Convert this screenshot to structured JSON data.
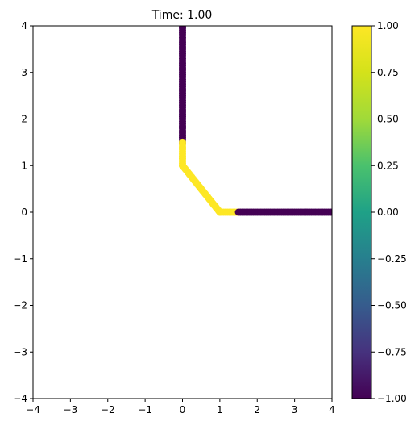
{
  "chart_data": {
    "type": "scatter",
    "title": "Time: 1.00",
    "xlabel": "",
    "ylabel": "",
    "xlim": [
      -4,
      4
    ],
    "ylim": [
      -4,
      4
    ],
    "xticks": [
      -4,
      -3,
      -2,
      -1,
      0,
      1,
      2,
      3,
      4
    ],
    "yticks": [
      -4,
      -3,
      -2,
      -1,
      0,
      1,
      2,
      3,
      4
    ],
    "x_tick_labels": [
      "−4",
      "−3",
      "−2",
      "−1",
      "0",
      "1",
      "2",
      "3",
      "4"
    ],
    "y_tick_labels": [
      "−4",
      "−3",
      "−2",
      "−1",
      "0",
      "1",
      "2",
      "3",
      "4"
    ],
    "grid": false,
    "colormap": "viridis",
    "colorbar": {
      "min": -1.0,
      "max": 1.0,
      "ticks": [
        1.0,
        0.75,
        0.5,
        0.25,
        0.0,
        -0.25,
        -0.5,
        -0.75,
        -1.0
      ],
      "tick_labels": [
        "1.00",
        "0.75",
        "0.50",
        "0.25",
        "0.00",
        "−0.25",
        "−0.50",
        "−0.75",
        "−1.00"
      ]
    },
    "segments": [
      {
        "from": [
          0,
          4
        ],
        "to": [
          0,
          1.5
        ],
        "value": -1.0,
        "color": "#440154"
      },
      {
        "from": [
          0,
          1.5
        ],
        "to": [
          0,
          1.0
        ],
        "value": 1.0,
        "color": "#fde725"
      },
      {
        "from": [
          0,
          1.0
        ],
        "to": [
          1.0,
          0
        ],
        "value": 1.0,
        "color": "#fde725"
      },
      {
        "from": [
          1.0,
          0
        ],
        "to": [
          1.5,
          0
        ],
        "value": 1.0,
        "color": "#fde725"
      },
      {
        "from": [
          1.5,
          0
        ],
        "to": [
          4,
          0
        ],
        "value": -1.0,
        "color": "#440154"
      }
    ]
  }
}
